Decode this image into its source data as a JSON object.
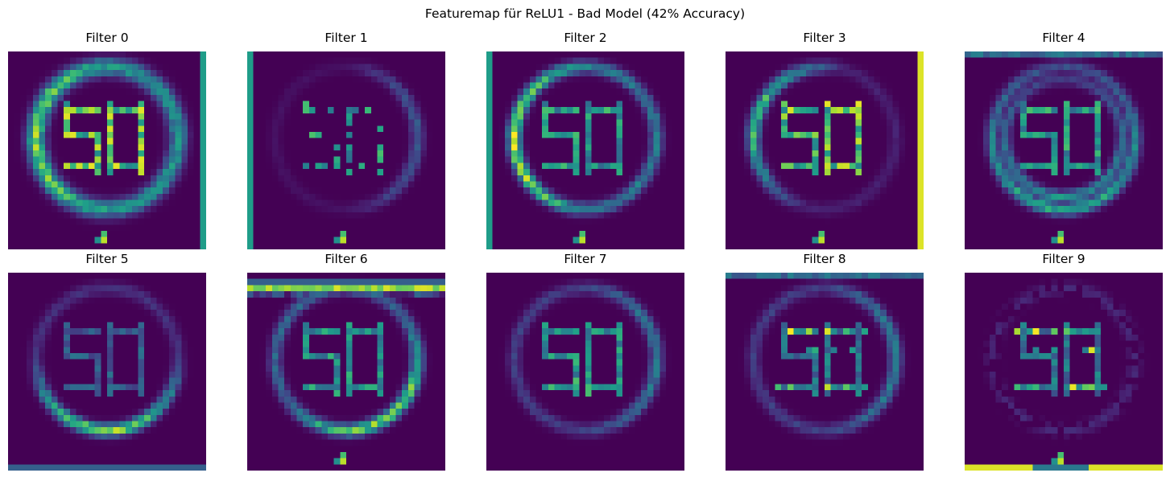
{
  "chart_data": {
    "type": "heatmap",
    "title": "Featuremap für ReLU1 - Bad Model (42% Accuracy)",
    "colormap": "viridis",
    "axes_visible": false,
    "grid": "2x5",
    "panels": [
      {
        "title": "Filter 0",
        "pattern": "ring_thick_bright_left",
        "digits": "strong",
        "edge": "right",
        "bottom_blob": true
      },
      {
        "title": "Filter 1",
        "pattern": "ring_faint_right",
        "digits": "sparse",
        "edge": "left",
        "bottom_blob": true
      },
      {
        "title": "Filter 2",
        "pattern": "ring_bright_left",
        "digits": "medium",
        "edge": "left",
        "bottom_blob": true
      },
      {
        "title": "Filter 3",
        "pattern": "ring_left_arc",
        "digits": "strong",
        "edge": "right_bright",
        "bottom_blob": true
      },
      {
        "title": "Filter 4",
        "pattern": "ring_double",
        "digits": "medium",
        "edge": "top",
        "bottom_blob": true
      },
      {
        "title": "Filter 5",
        "pattern": "ring_bright_bottom",
        "digits": "faint",
        "edge": "bottom",
        "bottom_blob": false
      },
      {
        "title": "Filter 6",
        "pattern": "ring_bright_bottom_left",
        "digits": "medium",
        "edge": "top_band",
        "bottom_blob": true
      },
      {
        "title": "Filter 7",
        "pattern": "ring_faint",
        "digits": "medium",
        "edge": "none",
        "bottom_blob": false
      },
      {
        "title": "Filter 8",
        "pattern": "ring_faint",
        "digits": "dashes",
        "edge": "top",
        "bottom_blob": false
      },
      {
        "title": "Filter 9",
        "pattern": "ring_faint_dashed",
        "digits": "dashes",
        "edge": "bottom_bright",
        "bottom_blob": true
      }
    ]
  }
}
